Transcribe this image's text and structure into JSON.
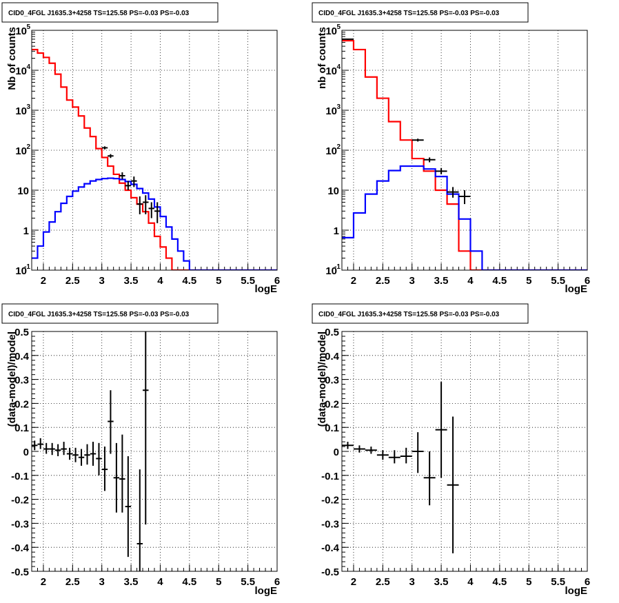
{
  "chart_data": [
    {
      "type": "line",
      "title": "CID0_4FGL J1635.3+4258 TS=125.58 PS=-0.03 PS=-0.03",
      "xlabel": "logE",
      "ylabel": "Nb of counts",
      "xlim": [
        1.8,
        6
      ],
      "ylim": [
        0.1,
        100000
      ],
      "yscale": "log",
      "grid": true,
      "bin_width": 0.1,
      "bin_start": 1.8,
      "x_ticks": [
        "2",
        "2.5",
        "3",
        "3.5",
        "4",
        "4.5",
        "5",
        "5.5",
        "6"
      ],
      "y_ticks": [
        {
          "base": "10",
          "exp": "-1",
          "value": 0.1
        },
        {
          "base": "1",
          "exp": "",
          "value": 1
        },
        {
          "base": "10",
          "exp": "",
          "value": 10
        },
        {
          "base": "10",
          "exp": "2",
          "value": 100
        },
        {
          "base": "10",
          "exp": "3",
          "value": 1000
        },
        {
          "base": "10",
          "exp": "4",
          "value": 10000
        },
        {
          "base": "10",
          "exp": "5",
          "value": 100000
        }
      ],
      "series": [
        {
          "color": "#ff0000",
          "style": "step",
          "values": [
            33000,
            27000,
            21000,
            15000,
            8000,
            3800,
            1800,
            1200,
            720,
            360,
            220,
            110,
            66,
            40,
            25,
            15,
            10,
            6.5,
            4.5,
            2.9,
            1.5,
            0.7,
            0.38,
            0.2,
            0.1,
            0.1,
            0.1,
            0.1,
            0.1,
            0.1,
            0.1,
            0.1,
            0.1,
            0.1,
            0.1,
            0.1,
            0.1,
            0.1,
            0.1,
            0.1,
            0.1,
            0.1
          ]
        },
        {
          "color": "#0000ff",
          "style": "step",
          "values": [
            0.2,
            0.4,
            0.9,
            1.6,
            2.9,
            4.7,
            7,
            9.5,
            12,
            14.5,
            17,
            18.5,
            19.5,
            20,
            19.5,
            18.5,
            16.5,
            14,
            11,
            8.5,
            6,
            3.8,
            2.2,
            1.2,
            0.6,
            0.3,
            0.17,
            0.1,
            0.1,
            0.1,
            0.1,
            0.1,
            0.1,
            0.1,
            0.1,
            0.1,
            0.1,
            0.1,
            0.1,
            0.1,
            0.1,
            0.1
          ]
        },
        {
          "color": "#000000",
          "style": "points",
          "points": [
            {
              "x": 3.05,
              "y": 115,
              "lo": 105,
              "hi": 125
            },
            {
              "x": 3.15,
              "y": 72,
              "lo": 64,
              "hi": 80
            },
            {
              "x": 3.35,
              "y": 23,
              "lo": 19,
              "hi": 28
            },
            {
              "x": 3.45,
              "y": 13,
              "lo": 10,
              "hi": 17
            },
            {
              "x": 3.55,
              "y": 17,
              "lo": 12,
              "hi": 22
            },
            {
              "x": 3.65,
              "y": 4.5,
              "lo": 2.5,
              "hi": 7
            },
            {
              "x": 3.75,
              "y": 5,
              "lo": 2.5,
              "hi": 7.5
            },
            {
              "x": 3.85,
              "y": 3.5,
              "lo": 2,
              "hi": 5
            },
            {
              "x": 3.95,
              "y": 3,
              "lo": 1.5,
              "hi": 5
            }
          ]
        }
      ]
    },
    {
      "type": "line",
      "title": "CID0_4FGL J1635.3+4258 TS=125.58 PS=-0.03 PS=-0.03",
      "xlabel": "logE",
      "ylabel": "nb of counts",
      "xlim": [
        1.8,
        6
      ],
      "ylim": [
        0.1,
        100000
      ],
      "yscale": "log",
      "grid": true,
      "bin_width": 0.2,
      "bin_start": 1.8,
      "x_ticks": [
        "2",
        "2.5",
        "3",
        "3.5",
        "4",
        "4.5",
        "5",
        "5.5",
        "6"
      ],
      "y_ticks": [
        {
          "base": "10",
          "exp": "-1",
          "value": 0.1
        },
        {
          "base": "1",
          "exp": "",
          "value": 1
        },
        {
          "base": "10",
          "exp": "",
          "value": 10
        },
        {
          "base": "10",
          "exp": "2",
          "value": 100
        },
        {
          "base": "10",
          "exp": "3",
          "value": 1000
        },
        {
          "base": "10",
          "exp": "4",
          "value": 10000
        },
        {
          "base": "10",
          "exp": "5",
          "value": 100000
        }
      ],
      "series": [
        {
          "color": "#ff0000",
          "style": "step",
          "values": [
            55000,
            33000,
            6800,
            2000,
            520,
            180,
            62,
            30,
            10,
            4.5,
            0.3,
            0.1,
            0.1,
            0.1,
            0.1,
            0.1,
            0.1,
            0.1,
            0.1,
            0.1,
            0.1
          ]
        },
        {
          "color": "#0000ff",
          "style": "step",
          "values": [
            0.65,
            2.7,
            8,
            17,
            31,
            40,
            40,
            34,
            22,
            8,
            1.9,
            0.3,
            0.1,
            0.1,
            0.1,
            0.1,
            0.1,
            0.1,
            0.1,
            0.1,
            0.1
          ]
        },
        {
          "color": "#000000",
          "style": "points",
          "points": [
            {
              "x": 1.9,
              "y": 60000,
              "lo": 58000,
              "hi": 62000
            },
            {
              "x": 3.1,
              "y": 180,
              "lo": 165,
              "hi": 195
            },
            {
              "x": 3.3,
              "y": 58,
              "lo": 50,
              "hi": 66
            },
            {
              "x": 3.5,
              "y": 30,
              "lo": 25,
              "hi": 36
            },
            {
              "x": 3.7,
              "y": 9,
              "lo": 6.5,
              "hi": 12
            },
            {
              "x": 3.9,
              "y": 7,
              "lo": 4.5,
              "hi": 10
            }
          ]
        }
      ]
    },
    {
      "type": "scatter",
      "title": "CID0_4FGL J1635.3+4258 TS=125.58 PS=-0.03 PS=-0.03",
      "xlabel": "logE",
      "ylabel": "(data-model)/model",
      "xlim": [
        1.8,
        6
      ],
      "ylim": [
        -0.5,
        0.5
      ],
      "grid": true,
      "x_ticks": [
        "2",
        "2.5",
        "3",
        "3.5",
        "4",
        "4.5",
        "5",
        "5.5",
        "6"
      ],
      "y_ticks": [
        "-0.5",
        "-0.4",
        "-0.3",
        "-0.2",
        "-0.1",
        "0",
        "0.1",
        "0.2",
        "0.3",
        "0.4",
        "0.5"
      ],
      "x_err": 0.05,
      "series": [
        {
          "color": "#000000",
          "points": [
            {
              "x": 1.85,
              "y": 0.025,
              "lo": 0.005,
              "hi": 0.045
            },
            {
              "x": 1.95,
              "y": 0.03,
              "lo": 0.01,
              "hi": 0.055
            },
            {
              "x": 2.05,
              "y": 0.01,
              "lo": -0.01,
              "hi": 0.035
            },
            {
              "x": 2.15,
              "y": 0.01,
              "lo": -0.015,
              "hi": 0.035
            },
            {
              "x": 2.25,
              "y": 0.005,
              "lo": -0.02,
              "hi": 0.03
            },
            {
              "x": 2.35,
              "y": 0.01,
              "lo": -0.015,
              "hi": 0.04
            },
            {
              "x": 2.45,
              "y": -0.01,
              "lo": -0.035,
              "hi": 0.015
            },
            {
              "x": 2.55,
              "y": -0.015,
              "lo": -0.045,
              "hi": 0.015
            },
            {
              "x": 2.65,
              "y": -0.025,
              "lo": -0.06,
              "hi": 0.01
            },
            {
              "x": 2.75,
              "y": -0.015,
              "lo": -0.055,
              "hi": 0.03
            },
            {
              "x": 2.85,
              "y": -0.01,
              "lo": -0.06,
              "hi": 0.04
            },
            {
              "x": 2.95,
              "y": -0.03,
              "lo": -0.1,
              "hi": 0.035
            },
            {
              "x": 3.05,
              "y": -0.075,
              "lo": -0.165,
              "hi": 0.02
            },
            {
              "x": 3.15,
              "y": 0.125,
              "lo": -0.01,
              "hi": 0.255
            },
            {
              "x": 3.25,
              "y": -0.11,
              "lo": -0.255,
              "hi": 0.035
            },
            {
              "x": 3.35,
              "y": -0.115,
              "lo": -0.255,
              "hi": 0.07
            },
            {
              "x": 3.45,
              "y": -0.23,
              "lo": -0.44,
              "hi": -0.02
            },
            {
              "x": 3.65,
              "y": -0.385,
              "lo": -0.5,
              "hi": -0.075
            },
            {
              "x": 3.75,
              "y": 0.255,
              "lo": -0.305,
              "hi": 0.5
            }
          ]
        }
      ]
    },
    {
      "type": "scatter",
      "title": "CID0_4FGL J1635.3+4258 TS=125.58 PS=-0.03 PS=-0.03",
      "xlabel": "logE",
      "ylabel": "(data-model)/model",
      "xlim": [
        1.8,
        6
      ],
      "ylim": [
        -0.5,
        0.5
      ],
      "grid": true,
      "x_ticks": [
        "2",
        "2.5",
        "3",
        "3.5",
        "4",
        "4.5",
        "5",
        "5.5",
        "6"
      ],
      "y_ticks": [
        "-0.5",
        "-0.4",
        "-0.3",
        "-0.2",
        "-0.1",
        "0",
        "0.1",
        "0.2",
        "0.3",
        "0.4",
        "0.5"
      ],
      "x_err": 0.1,
      "series": [
        {
          "color": "#000000",
          "points": [
            {
              "x": 1.9,
              "y": 0.025,
              "lo": 0.01,
              "hi": 0.04
            },
            {
              "x": 2.1,
              "y": 0.01,
              "lo": -0.005,
              "hi": 0.025
            },
            {
              "x": 2.3,
              "y": 0.005,
              "lo": -0.01,
              "hi": 0.02
            },
            {
              "x": 2.5,
              "y": -0.015,
              "lo": -0.035,
              "hi": 0.005
            },
            {
              "x": 2.7,
              "y": -0.025,
              "lo": -0.05,
              "hi": 0.005
            },
            {
              "x": 2.9,
              "y": -0.02,
              "lo": -0.05,
              "hi": 0.015
            },
            {
              "x": 3.1,
              "y": 0.0,
              "lo": -0.09,
              "hi": 0.08
            },
            {
              "x": 3.3,
              "y": -0.11,
              "lo": -0.225,
              "hi": 0.0
            },
            {
              "x": 3.5,
              "y": 0.09,
              "lo": -0.11,
              "hi": 0.29
            },
            {
              "x": 3.7,
              "y": -0.14,
              "lo": -0.425,
              "hi": 0.145
            }
          ]
        }
      ]
    }
  ]
}
